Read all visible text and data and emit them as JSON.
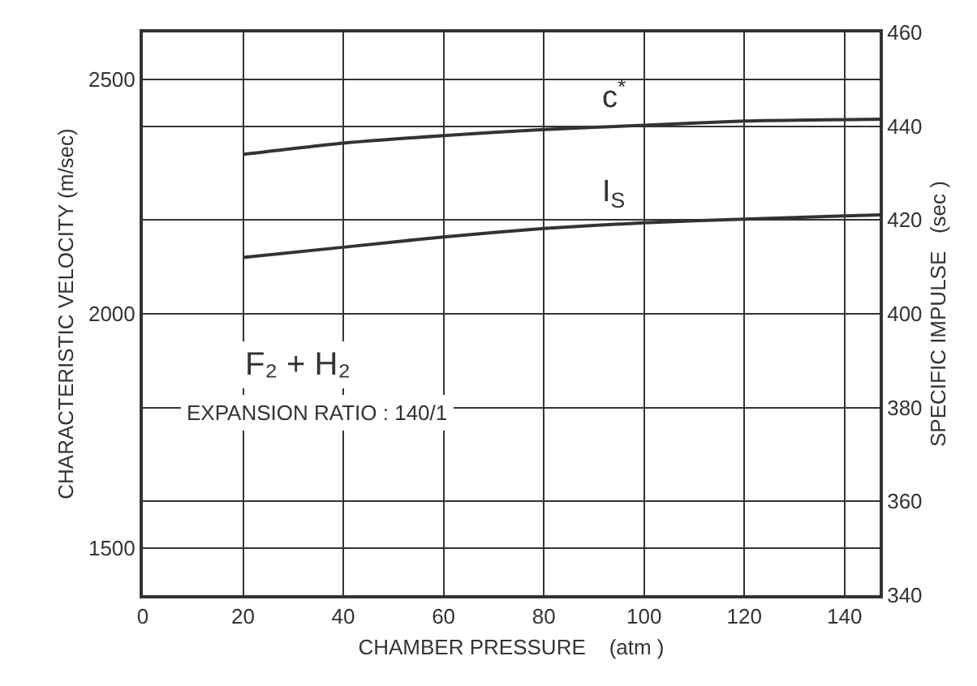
{
  "chart_data": {
    "type": "line",
    "xlabel": "CHAMBER PRESSURE    (atm )",
    "ylabel": "CHARACTERISTIC VELOCITY (m/sec)",
    "y2label": "SPECIFIC IMPULSE   (sec )",
    "xlim": [
      0,
      147
    ],
    "xticks": [
      0,
      20,
      40,
      60,
      80,
      100,
      120,
      140
    ],
    "ylim": [
      1400,
      2600
    ],
    "yticks": [
      1500,
      2000,
      2500
    ],
    "y2lim": [
      340,
      460
    ],
    "y2ticks": [
      340,
      360,
      380,
      400,
      420,
      440,
      460
    ],
    "grid": true,
    "legend": false,
    "marker": "none",
    "line_style": "solid",
    "series": [
      {
        "name": "c$^{*}$",
        "color": "#333333",
        "x": [
          20,
          40,
          60,
          80,
          100,
          120,
          147
        ],
        "values": [
          2340,
          2364,
          2380,
          2393,
          2402,
          2411,
          2415
        ]
      },
      {
        "name": "I$_{S}$",
        "color": "#333333",
        "axis": "y2",
        "x": [
          20,
          40,
          60,
          80,
          100,
          120,
          147
        ],
        "values": [
          412,
          414.2,
          416.4,
          418.2,
          419.4,
          420.2,
          421.1
        ]
      }
    ],
    "annotations": [
      "F₂ + H₂",
      "EXPANSION RATIO : 140/1"
    ]
  }
}
